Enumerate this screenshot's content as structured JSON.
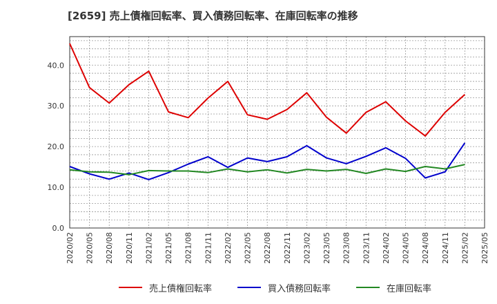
{
  "title": "[2659]  売上債権回転率、買入債務回転率、在庫回転率の推移",
  "chart_data": {
    "type": "line",
    "title": "[2659]  売上債権回転率、買入債務回転率、在庫回転率の推移",
    "xlabel": "",
    "ylabel": "",
    "ylim": [
      0,
      47
    ],
    "yticks": [
      "0.0",
      "10.0",
      "20.0",
      "30.0",
      "40.0"
    ],
    "xtick_labels": [
      "2020/02",
      "2020/05",
      "2020/08",
      "2020/11",
      "2021/02",
      "2021/05",
      "2021/08",
      "2021/11",
      "2022/02",
      "2022/05",
      "2022/08",
      "2022/11",
      "2023/02",
      "2023/05",
      "2023/08",
      "2023/11",
      "2024/02",
      "2024/05",
      "2024/08",
      "2024/11",
      "2025/02",
      "2025/05"
    ],
    "grid": true,
    "legend_position": "bottom",
    "x": [
      "2020/02",
      "2020/05",
      "2020/08",
      "2020/11",
      "2021/02",
      "2021/05",
      "2021/08",
      "2021/11",
      "2022/02",
      "2022/05",
      "2022/08",
      "2022/11",
      "2023/02",
      "2023/05",
      "2023/08",
      "2023/11",
      "2024/02",
      "2024/05",
      "2024/08",
      "2024/11",
      "2025/02"
    ],
    "series": [
      {
        "name": "売上債権回転率",
        "color": "#dd0000",
        "values": [
          45.3,
          34.5,
          30.7,
          35.2,
          38.5,
          28.5,
          27.1,
          31.9,
          36.0,
          27.8,
          26.7,
          29.1,
          33.2,
          27.2,
          23.3,
          28.4,
          31.0,
          26.3,
          22.6,
          28.4,
          32.8
        ]
      },
      {
        "name": "買入債務回転率",
        "color": "#0000cc",
        "values": [
          15.1,
          13.3,
          12.0,
          13.5,
          11.9,
          13.6,
          15.7,
          17.5,
          14.9,
          17.2,
          16.3,
          17.5,
          20.2,
          17.2,
          15.8,
          17.6,
          19.7,
          17.1,
          12.3,
          13.8,
          20.9
        ]
      },
      {
        "name": "在庫回転率",
        "color": "#228822",
        "values": [
          14.3,
          13.8,
          13.7,
          13.1,
          14.1,
          14.0,
          14.0,
          13.6,
          14.5,
          13.8,
          14.3,
          13.5,
          14.4,
          14.0,
          14.4,
          13.4,
          14.5,
          13.9,
          15.1,
          14.5,
          15.6
        ]
      }
    ]
  }
}
